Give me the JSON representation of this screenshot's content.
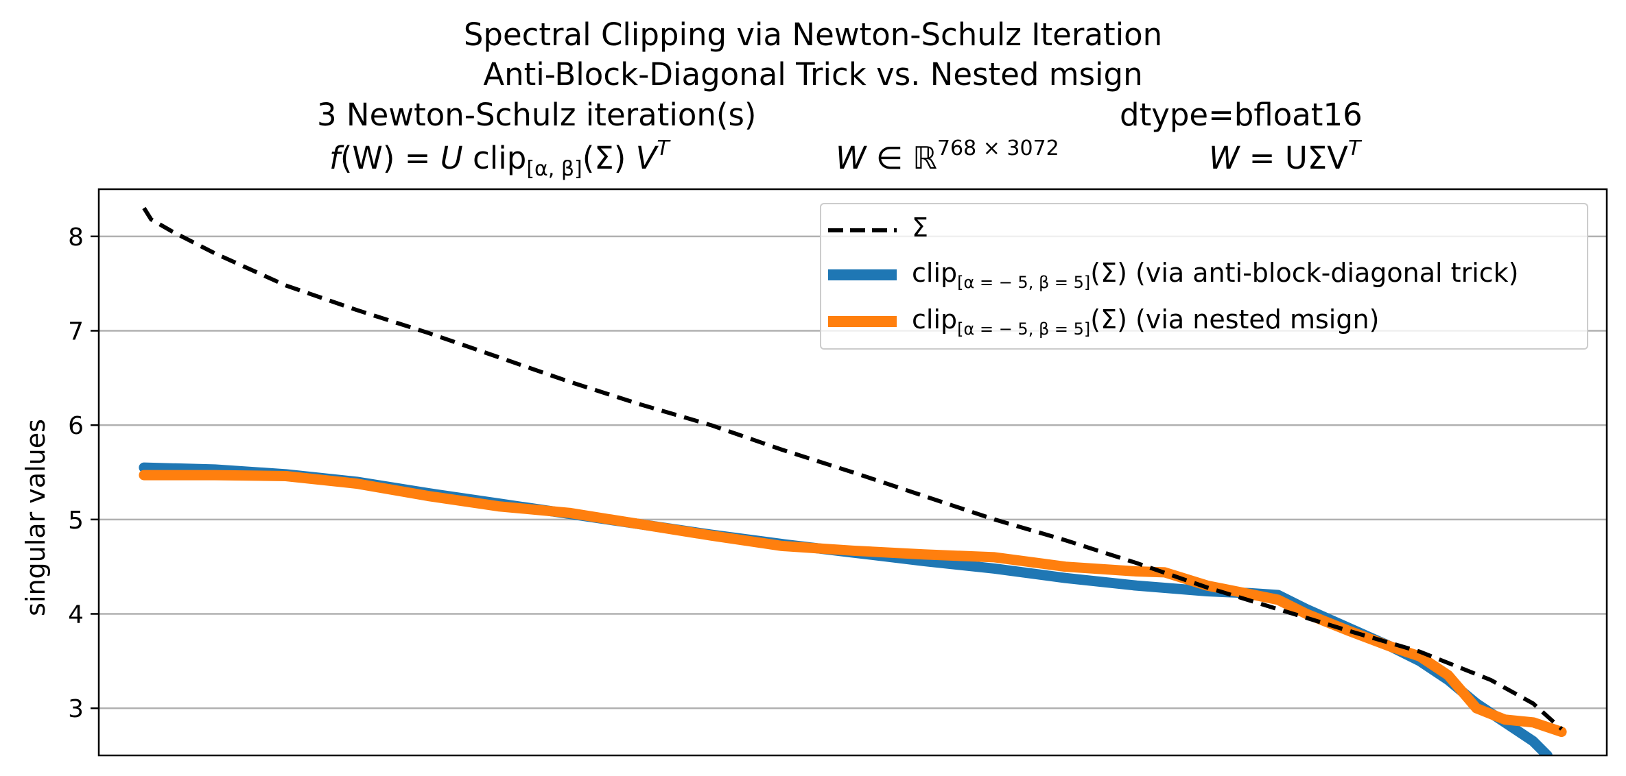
{
  "chart_data": {
    "type": "line",
    "title_lines": [
      "Spectral Clipping via Newton-Schulz Iteration",
      "Anti-Block-Diagonal Trick vs. Nested msign"
    ],
    "info_row": {
      "iterations": "3 Newton-Schulz iteration(s)",
      "dtype": "dtype=bfloat16"
    },
    "formula_row": {
      "f_lhs": "f",
      "f_paren": "(W) = ",
      "f_u": "U",
      "f_clip": " clip",
      "f_clip_sub": "[α, β]",
      "f_sigma": "(Σ) ",
      "f_v": "V",
      "f_t": "T",
      "w_in": "W",
      "w_in_sym": " ∈ ℝ",
      "w_in_sup": "768 × 3072",
      "w_eq": "W",
      "w_eq_rhs": " = UΣV",
      "w_eq_t": "T"
    },
    "ylabel": "singular values",
    "xlabel": "",
    "ylim": [
      2.5,
      8.5
    ],
    "yticks": [
      3,
      4,
      5,
      6,
      7,
      8
    ],
    "grid": "horizontal",
    "legend_position": "top-right",
    "series": [
      {
        "name": "Σ",
        "color": "#000000",
        "style": "dashed",
        "x": [
          0,
          0.005,
          0.02,
          0.05,
          0.1,
          0.15,
          0.2,
          0.25,
          0.3,
          0.35,
          0.4,
          0.45,
          0.5,
          0.55,
          0.6,
          0.65,
          0.7,
          0.75,
          0.8,
          0.85,
          0.9,
          0.95,
          0.98,
          1.0
        ],
        "y": [
          8.3,
          8.18,
          8.05,
          7.82,
          7.48,
          7.22,
          6.98,
          6.72,
          6.46,
          6.22,
          6.0,
          5.74,
          5.5,
          5.25,
          5.0,
          4.78,
          4.54,
          4.28,
          4.05,
          3.82,
          3.6,
          3.3,
          3.05,
          2.78
        ]
      },
      {
        "name": "clip",
        "legend_sub": "[α = − 5, β = 5]",
        "legend_suffix": "(Σ) (via anti-block-diagonal trick)",
        "color": "#1f77b4",
        "style": "solid",
        "x": [
          0,
          0.05,
          0.1,
          0.15,
          0.2,
          0.25,
          0.3,
          0.35,
          0.4,
          0.45,
          0.5,
          0.55,
          0.6,
          0.65,
          0.7,
          0.75,
          0.78,
          0.8,
          0.82,
          0.85,
          0.88,
          0.9,
          0.92,
          0.94,
          0.96,
          0.98,
          0.99
        ],
        "y": [
          5.55,
          5.53,
          5.48,
          5.4,
          5.28,
          5.17,
          5.06,
          4.95,
          4.84,
          4.74,
          4.65,
          4.56,
          4.48,
          4.38,
          4.3,
          4.24,
          4.22,
          4.2,
          4.05,
          3.85,
          3.65,
          3.5,
          3.3,
          3.05,
          2.85,
          2.65,
          2.5
        ]
      },
      {
        "name": "clip",
        "legend_sub": "[α = − 5, β = 5]",
        "legend_suffix": "(Σ) (via nested msign)",
        "color": "#ff7f0e",
        "style": "solid",
        "x": [
          0,
          0.05,
          0.1,
          0.15,
          0.2,
          0.25,
          0.3,
          0.35,
          0.4,
          0.45,
          0.5,
          0.55,
          0.6,
          0.65,
          0.7,
          0.72,
          0.75,
          0.8,
          0.82,
          0.85,
          0.88,
          0.9,
          0.92,
          0.94,
          0.96,
          0.98,
          1.0
        ],
        "y": [
          5.47,
          5.47,
          5.46,
          5.38,
          5.25,
          5.14,
          5.07,
          4.95,
          4.83,
          4.72,
          4.67,
          4.63,
          4.6,
          4.5,
          4.45,
          4.44,
          4.3,
          4.15,
          4.0,
          3.82,
          3.65,
          3.55,
          3.35,
          3.0,
          2.88,
          2.85,
          2.75
        ]
      }
    ]
  }
}
